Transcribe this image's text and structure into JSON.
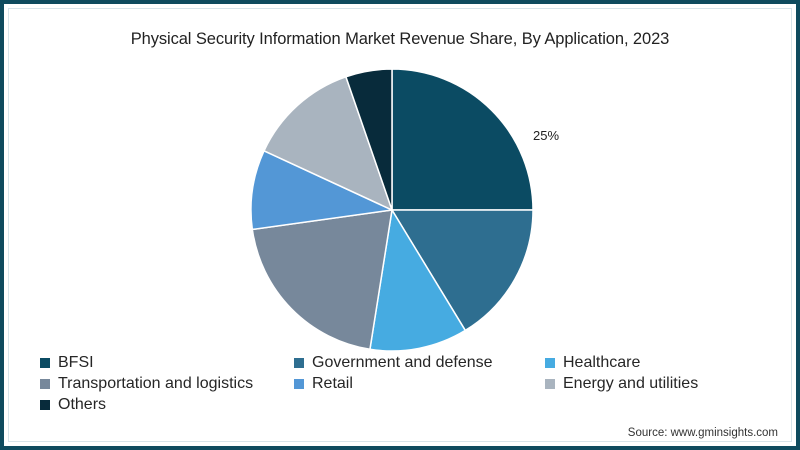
{
  "chart_data": {
    "type": "pie",
    "title": "Physical Security Information Market Revenue Share, By Application, 2023",
    "categories": [
      "BFSI",
      "Government and defense",
      "Healthcare",
      "Transportation and logistics",
      "Retail",
      "Energy and utilities",
      "Others"
    ],
    "values": [
      25,
      16.3,
      11.2,
      20.3,
      9.1,
      12.8,
      5.3
    ],
    "colors": [
      "#0b4b63",
      "#2e6e90",
      "#46abe1",
      "#77889b",
      "#5397d6",
      "#a9b4bf",
      "#082b3b"
    ],
    "data_labels": [
      {
        "category": "BFSI",
        "text": "25%"
      }
    ],
    "start_angle_deg": 0,
    "direction": "clockwise",
    "legend_position": "bottom",
    "source": "Source: www.gminsights.com"
  },
  "title": "Physical Security Information Market Revenue Share, By Application, 2023",
  "label_bfsi": "25%",
  "legend": [
    {
      "label": "BFSI",
      "color": "#0b4b63"
    },
    {
      "label": "Government and defense",
      "color": "#2e6e90"
    },
    {
      "label": "Healthcare",
      "color": "#46abe1"
    },
    {
      "label": "Transportation and logistics",
      "color": "#77889b"
    },
    {
      "label": "Retail",
      "color": "#5397d6"
    },
    {
      "label": "Energy and utilities",
      "color": "#a9b4bf"
    },
    {
      "label": "Others",
      "color": "#082b3b"
    }
  ],
  "source": "Source: www.gminsights.com",
  "frame_color": "#0f4b5e"
}
